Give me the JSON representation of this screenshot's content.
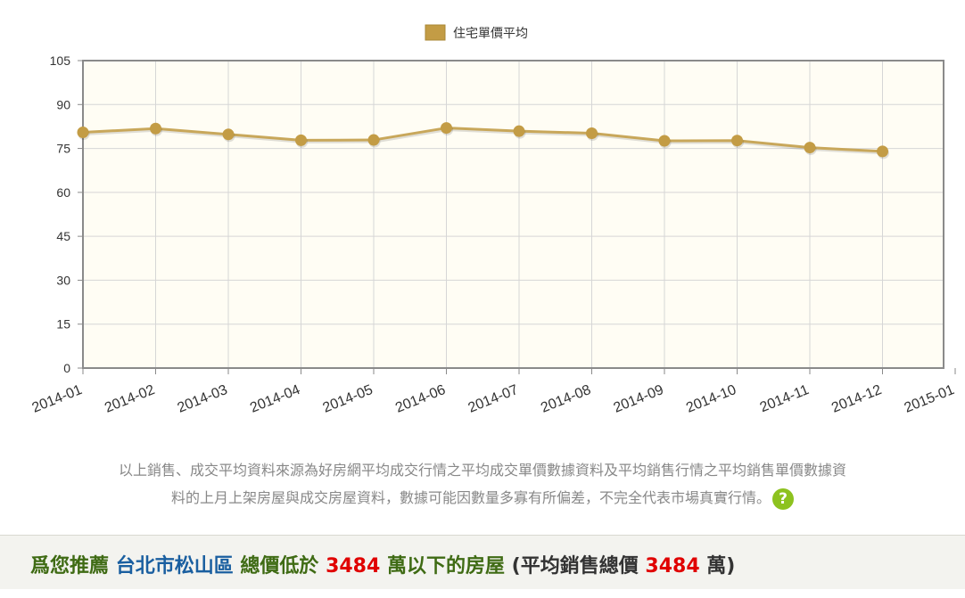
{
  "chart_data": {
    "type": "line",
    "x": [
      "2014-01",
      "2014-02",
      "2014-03",
      "2014-04",
      "2014-05",
      "2014-06",
      "2014-07",
      "2014-08",
      "2014-09",
      "2014-10",
      "2014-11",
      "2014-12"
    ],
    "x_ticks": [
      "2014-01",
      "2014-02",
      "2014-03",
      "2014-04",
      "2014-05",
      "2014-06",
      "2014-07",
      "2014-08",
      "2014-09",
      "2014-10",
      "2014-11",
      "2014-12",
      "2015-01"
    ],
    "series": [
      {
        "name": "住宅單價平均",
        "values": [
          80.5,
          81.8,
          79.8,
          77.8,
          77.9,
          82.0,
          80.9,
          80.2,
          77.6,
          77.7,
          75.3,
          74.0
        ]
      }
    ],
    "ylim": [
      0,
      105
    ],
    "yticks": [
      0,
      15,
      30,
      45,
      60,
      75,
      90,
      105
    ],
    "grid": true,
    "legend": "top-center",
    "colors": {
      "line": "#c8a75a",
      "marker": "#c39c45",
      "plot_bg": "#fffdf4",
      "grid": "#d6d6d6",
      "frame": "#8a8a8a"
    }
  },
  "disclaimer": {
    "line1": "以上銷售、成交平均資料來源為好房網平均成交行情之平均成交單價數據資料及平均銷售行情之平均銷售單價數據資",
    "line2": "料的上月上架房屋與成交房屋資料，數據可能因數量多寡有所偏差，不完全代表市場真實行情。",
    "help_icon": "question-icon",
    "help_glyph": "?"
  },
  "recommend": {
    "prefix": "爲您推薦",
    "location": "台北市松山區",
    "total_label": "總價低於",
    "price": "3484",
    "suffix": "萬以下的房屋",
    "avg_open": "(平均銷售總價",
    "avg_price": "3484",
    "avg_close": "萬)"
  }
}
